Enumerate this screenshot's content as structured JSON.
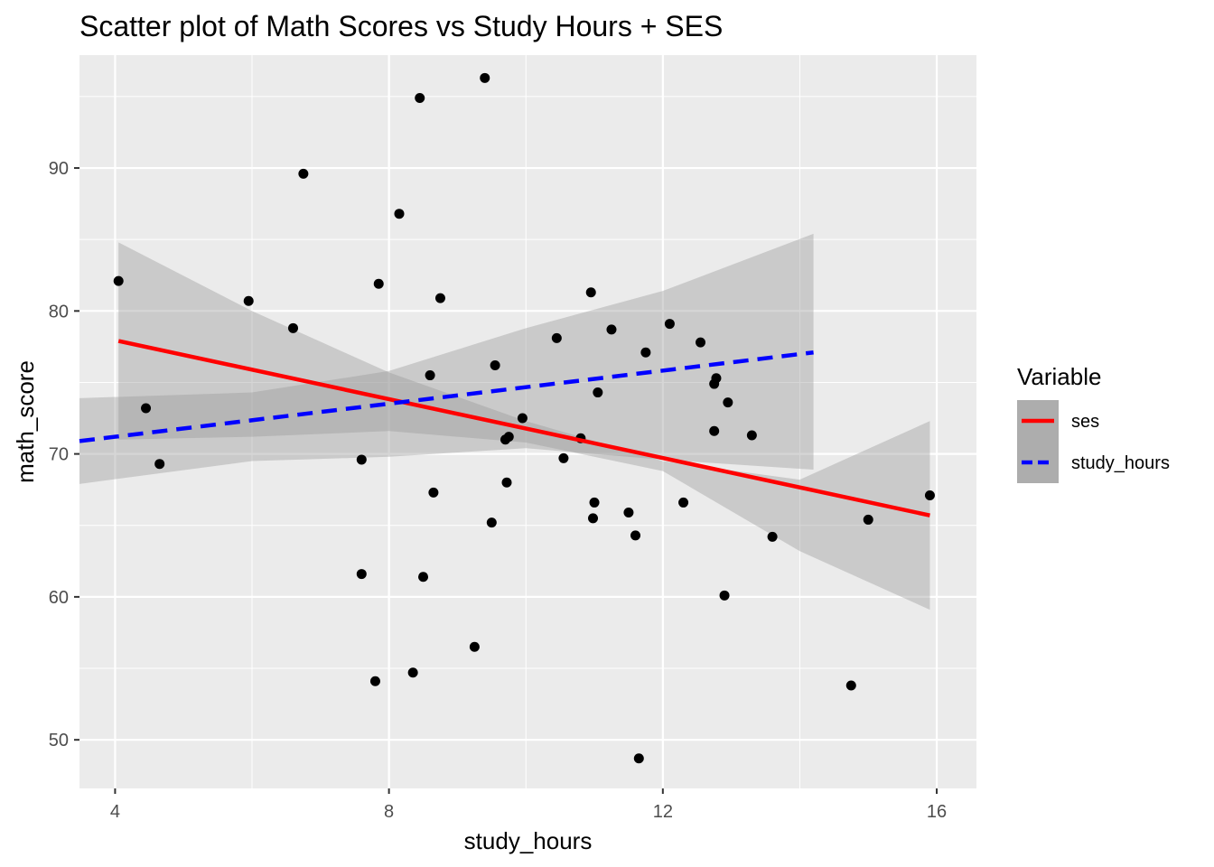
{
  "chart_data": {
    "type": "scatter",
    "title": "Scatter plot of Math Scores vs Study Hours + SES",
    "xlabel": "study_hours",
    "ylabel": "math_score",
    "xlim": [
      3.48,
      16.58
    ],
    "ylim": [
      46.6,
      97.9
    ],
    "xticks": [
      4,
      8,
      12,
      16
    ],
    "yticks": [
      50,
      60,
      70,
      80,
      90
    ],
    "grid": true,
    "legend": {
      "title": "Variable",
      "position": "right",
      "entries": [
        {
          "label": "ses",
          "color": "#ff0000",
          "dash": "solid"
        },
        {
          "label": "study_hours",
          "color": "#0000ff",
          "dash": "dashed"
        }
      ]
    },
    "points": [
      [
        4.05,
        82.1
      ],
      [
        4.45,
        73.2
      ],
      [
        4.65,
        69.3
      ],
      [
        5.95,
        80.7
      ],
      [
        6.6,
        78.8
      ],
      [
        6.75,
        89.6
      ],
      [
        7.6,
        69.6
      ],
      [
        7.6,
        61.6
      ],
      [
        7.8,
        54.1
      ],
      [
        7.85,
        81.9
      ],
      [
        8.15,
        86.8
      ],
      [
        8.35,
        54.7
      ],
      [
        8.45,
        94.9
      ],
      [
        8.5,
        61.4
      ],
      [
        8.6,
        75.5
      ],
      [
        8.65,
        67.3
      ],
      [
        8.75,
        80.9
      ],
      [
        9.25,
        56.5
      ],
      [
        9.4,
        96.3
      ],
      [
        9.5,
        65.2
      ],
      [
        9.55,
        76.2
      ],
      [
        9.7,
        71.0
      ],
      [
        9.72,
        68.0
      ],
      [
        9.75,
        71.2
      ],
      [
        9.95,
        72.5
      ],
      [
        10.45,
        78.1
      ],
      [
        10.55,
        69.7
      ],
      [
        10.8,
        71.1
      ],
      [
        10.95,
        81.3
      ],
      [
        10.98,
        65.5
      ],
      [
        11.0,
        66.6
      ],
      [
        11.05,
        74.3
      ],
      [
        11.25,
        78.7
      ],
      [
        11.5,
        65.9
      ],
      [
        11.6,
        64.3
      ],
      [
        11.65,
        48.7
      ],
      [
        11.75,
        77.1
      ],
      [
        12.1,
        79.1
      ],
      [
        12.3,
        66.6
      ],
      [
        12.55,
        77.8
      ],
      [
        12.75,
        74.9
      ],
      [
        12.78,
        75.3
      ],
      [
        12.75,
        71.6
      ],
      [
        12.9,
        60.1
      ],
      [
        12.95,
        73.6
      ],
      [
        13.3,
        71.3
      ],
      [
        13.6,
        64.2
      ],
      [
        14.75,
        53.8
      ],
      [
        15.0,
        65.4
      ],
      [
        15.9,
        67.1
      ]
    ],
    "series": [
      {
        "name": "ses",
        "color": "#ff0000",
        "line": [
          [
            4.05,
            77.9
          ],
          [
            15.9,
            65.7
          ]
        ],
        "band_upper": [
          [
            4.05,
            84.8
          ],
          [
            6.0,
            80.0
          ],
          [
            8.0,
            75.7
          ],
          [
            10.0,
            72.3
          ],
          [
            12.0,
            69.5
          ],
          [
            14.0,
            68.2
          ],
          [
            15.9,
            72.3
          ]
        ],
        "band_lower": [
          [
            4.05,
            71.0
          ],
          [
            6.0,
            71.2
          ],
          [
            8.0,
            71.6
          ],
          [
            10.0,
            70.8
          ],
          [
            12.0,
            68.8
          ],
          [
            14.0,
            63.2
          ],
          [
            15.9,
            59.1
          ]
        ]
      },
      {
        "name": "study_hours",
        "color": "#0000ff",
        "line": [
          [
            3.48,
            70.9
          ],
          [
            14.2,
            77.1
          ]
        ],
        "band_upper": [
          [
            3.48,
            73.9
          ],
          [
            6.0,
            74.3
          ],
          [
            8.0,
            75.8
          ],
          [
            10.0,
            78.8
          ],
          [
            12.0,
            81.4
          ],
          [
            14.2,
            85.4
          ]
        ],
        "band_lower": [
          [
            3.48,
            67.9
          ],
          [
            6.0,
            69.5
          ],
          [
            8.0,
            69.8
          ],
          [
            10.0,
            70.4
          ],
          [
            12.0,
            69.6
          ],
          [
            14.2,
            68.9
          ]
        ]
      }
    ]
  }
}
